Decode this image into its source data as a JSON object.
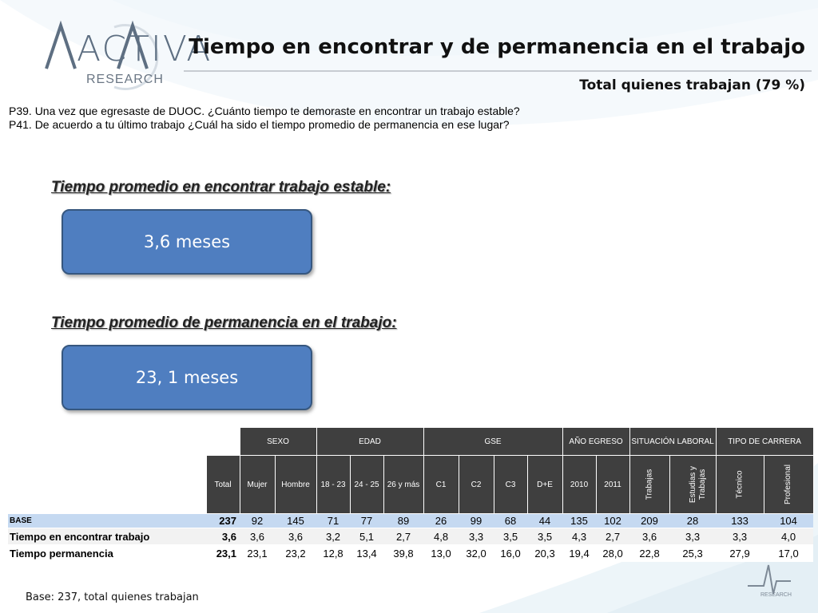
{
  "logo": {
    "word": "ACTIVA",
    "sub": "RESEARCH",
    "footer_sub": "RESEARCH"
  },
  "header": {
    "title": "Tiempo en encontrar y de permanencia en el trabajo",
    "subtitle": "Total quienes trabajan (79 %)"
  },
  "questions": [
    "P39. Una vez que egresaste de DUOC. ¿Cuánto tiempo te demoraste en encontrar un trabajo estable?",
    "P41. De acuerdo a tu último trabajo ¿Cuál ha sido el tiempo promedio de permanencia en ese lugar?"
  ],
  "metrics": [
    {
      "label": "Tiempo promedio en encontrar trabajo estable:",
      "value": "3,6 meses"
    },
    {
      "label": "Tiempo promedio de permanencia en el trabajo:",
      "value": "23, 1 meses"
    }
  ],
  "table": {
    "groups": [
      {
        "label": "SEXO"
      },
      {
        "label": "EDAD"
      },
      {
        "label": "GSE"
      },
      {
        "label": "AÑO EGRESO"
      },
      {
        "label": "SITUACIÓN LABORAL"
      },
      {
        "label": "TIPO DE CARRERA"
      }
    ],
    "columns": [
      "Total",
      "Mujer",
      "Hombre",
      "18 - 23",
      "24 - 25",
      "26 y más",
      "C1",
      "C2",
      "C3",
      "D+E",
      "2010",
      "2011",
      "Trabajas",
      "Estudias y Trabajas",
      "Técnico",
      "Profesional"
    ],
    "rows": [
      {
        "label": "BASE",
        "values": [
          "237",
          "92",
          "145",
          "71",
          "77",
          "89",
          "26",
          "99",
          "68",
          "44",
          "135",
          "102",
          "209",
          "28",
          "133",
          "104"
        ]
      },
      {
        "label": "Tiempo en encontrar trabajo",
        "values": [
          "3,6",
          "3,6",
          "3,6",
          "3,2",
          "5,1",
          "2,7",
          "4,8",
          "3,3",
          "3,5",
          "3,5",
          "4,3",
          "2,7",
          "3,6",
          "3,3",
          "3,3",
          "4,0"
        ]
      },
      {
        "label": "Tiempo permanencia",
        "values": [
          "23,1",
          "23,1",
          "23,2",
          "12,8",
          "13,4",
          "39,8",
          "13,0",
          "32,0",
          "16,0",
          "20,3",
          "19,4",
          "28,0",
          "22,8",
          "25,3",
          "27,9",
          "17,0"
        ]
      }
    ]
  },
  "footer": {
    "note": "Base: 237, total quienes trabajan"
  },
  "colors": {
    "box": "#4f7ec0",
    "header": "#3f3f3f",
    "base_row": "#c5d9f1"
  }
}
